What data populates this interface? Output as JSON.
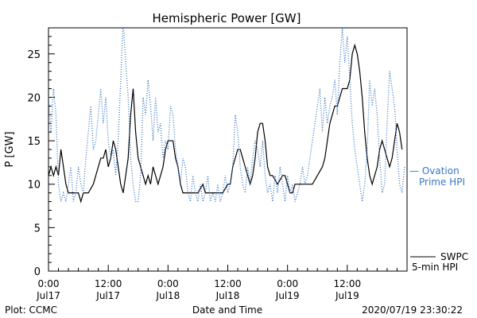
{
  "chart_data": {
    "type": "line",
    "title": "Hemispheric Power [GW]",
    "ylabel": "P [GW]",
    "xlabel": "Date and Time",
    "footer_left": "Plot: CCMC",
    "footer_right": "2020/07/19 23:30:22",
    "xlim_hours": [
      0,
      72
    ],
    "ylim": [
      0,
      28
    ],
    "y_ticks": [
      0,
      5,
      10,
      15,
      20,
      25
    ],
    "x_ticks": [
      {
        "hours": 0,
        "time": "0:00",
        "date": "Jul17"
      },
      {
        "hours": 12,
        "time": "12:00",
        "date": "Jul17"
      },
      {
        "hours": 24,
        "time": "0:00",
        "date": "Jul18"
      },
      {
        "hours": 36,
        "time": "12:00",
        "date": "Jul18"
      },
      {
        "hours": 48,
        "time": "0:00",
        "date": "Jul19"
      },
      {
        "hours": 60,
        "time": "12:00",
        "date": "Jul19"
      }
    ],
    "grid": false,
    "series": [
      {
        "name": "SWPC 5-min HPI",
        "legend_lines": [
          "SWPC",
          "5-min HPI"
        ],
        "color": "#000000",
        "style": "solid",
        "points": [
          [
            0,
            11
          ],
          [
            0.5,
            12
          ],
          [
            1,
            11
          ],
          [
            1.5,
            12
          ],
          [
            2,
            11
          ],
          [
            2.5,
            14
          ],
          [
            3,
            12
          ],
          [
            3.5,
            10
          ],
          [
            4,
            9
          ],
          [
            5,
            9
          ],
          [
            6,
            9
          ],
          [
            6.5,
            8
          ],
          [
            7,
            9
          ],
          [
            8,
            9
          ],
          [
            9,
            10
          ],
          [
            10,
            12
          ],
          [
            10.5,
            13
          ],
          [
            11,
            13
          ],
          [
            11.5,
            14
          ],
          [
            12,
            12
          ],
          [
            12.5,
            13
          ],
          [
            13,
            15
          ],
          [
            13.5,
            14
          ],
          [
            14,
            12
          ],
          [
            14.5,
            10
          ],
          [
            15,
            9
          ],
          [
            15.5,
            11
          ],
          [
            16,
            13
          ],
          [
            16.5,
            18
          ],
          [
            17,
            21
          ],
          [
            17.5,
            16
          ],
          [
            18,
            13
          ],
          [
            18.5,
            12
          ],
          [
            19,
            11
          ],
          [
            19.5,
            10
          ],
          [
            20,
            11
          ],
          [
            20.5,
            10
          ],
          [
            21,
            12
          ],
          [
            22,
            10
          ],
          [
            23,
            12
          ],
          [
            23.5,
            14
          ],
          [
            24,
            15
          ],
          [
            25,
            15
          ],
          [
            25.5,
            13
          ],
          [
            26,
            12
          ],
          [
            26.5,
            10
          ],
          [
            27,
            9
          ],
          [
            28,
            9
          ],
          [
            29,
            9
          ],
          [
            30,
            9
          ],
          [
            31,
            10
          ],
          [
            31.5,
            9
          ],
          [
            32,
            9
          ],
          [
            33,
            9
          ],
          [
            34,
            9
          ],
          [
            35,
            9
          ],
          [
            36,
            10
          ],
          [
            36.5,
            10
          ],
          [
            37,
            12
          ],
          [
            37.5,
            13
          ],
          [
            38,
            14
          ],
          [
            38.5,
            14
          ],
          [
            39,
            13
          ],
          [
            39.5,
            12
          ],
          [
            40,
            11
          ],
          [
            40.5,
            10
          ],
          [
            41,
            11
          ],
          [
            41.5,
            13
          ],
          [
            42,
            16
          ],
          [
            42.5,
            17
          ],
          [
            43,
            17
          ],
          [
            43.5,
            15
          ],
          [
            44,
            12
          ],
          [
            44.5,
            11
          ],
          [
            45,
            11
          ],
          [
            46,
            10
          ],
          [
            47,
            11
          ],
          [
            47.5,
            11
          ],
          [
            48,
            10
          ],
          [
            48.5,
            9
          ],
          [
            49,
            9
          ],
          [
            49.5,
            10
          ],
          [
            50,
            10
          ],
          [
            51,
            10
          ],
          [
            52,
            10
          ],
          [
            53,
            10
          ],
          [
            54,
            11
          ],
          [
            55,
            12
          ],
          [
            55.5,
            13
          ],
          [
            56,
            15
          ],
          [
            56.5,
            17
          ],
          [
            57,
            18
          ],
          [
            57.5,
            19
          ],
          [
            58,
            19
          ],
          [
            58.5,
            20
          ],
          [
            59,
            21
          ],
          [
            60,
            21
          ],
          [
            60.5,
            22
          ],
          [
            61,
            25
          ],
          [
            61.5,
            26
          ],
          [
            62,
            25
          ],
          [
            62.5,
            23
          ],
          [
            63,
            20
          ],
          [
            63.5,
            16
          ],
          [
            64,
            13
          ],
          [
            64.5,
            11
          ],
          [
            65,
            10
          ],
          [
            65.5,
            11
          ],
          [
            66,
            12
          ],
          [
            66.5,
            14
          ],
          [
            67,
            15
          ],
          [
            67.5,
            14
          ],
          [
            68,
            13
          ],
          [
            68.5,
            12
          ],
          [
            69,
            13
          ],
          [
            69.5,
            15
          ],
          [
            70,
            17
          ],
          [
            70.5,
            16
          ],
          [
            71,
            14
          ]
        ]
      },
      {
        "name": "Ovation Prime HPI",
        "legend_lines": [
          "— Ovation",
          "Prime HPI"
        ],
        "color": "#3a75c4",
        "style": "dotted",
        "points": [
          [
            0,
            20
          ],
          [
            0.5,
            16
          ],
          [
            1,
            21
          ],
          [
            1.5,
            18
          ],
          [
            2,
            10
          ],
          [
            2.5,
            8
          ],
          [
            3,
            9
          ],
          [
            3.5,
            8
          ],
          [
            4,
            10
          ],
          [
            4.5,
            12
          ],
          [
            5,
            8
          ],
          [
            5.5,
            9
          ],
          [
            6,
            12
          ],
          [
            6.5,
            10
          ],
          [
            7,
            9
          ],
          [
            7.5,
            13
          ],
          [
            8,
            16
          ],
          [
            8.5,
            19
          ],
          [
            9,
            14
          ],
          [
            9.5,
            15
          ],
          [
            10,
            18
          ],
          [
            10.5,
            21
          ],
          [
            11,
            17
          ],
          [
            11.5,
            20
          ],
          [
            12,
            15
          ],
          [
            12.5,
            13
          ],
          [
            13,
            14
          ],
          [
            13.5,
            11
          ],
          [
            14,
            15
          ],
          [
            14.5,
            22
          ],
          [
            15,
            29
          ],
          [
            15.5,
            24
          ],
          [
            16,
            20
          ],
          [
            16.5,
            13
          ],
          [
            17,
            10
          ],
          [
            17.5,
            8
          ],
          [
            18,
            8
          ],
          [
            18.5,
            11
          ],
          [
            19,
            20
          ],
          [
            19.5,
            18
          ],
          [
            20,
            22
          ],
          [
            20.5,
            19
          ],
          [
            21,
            15
          ],
          [
            21.5,
            20
          ],
          [
            22,
            16
          ],
          [
            22.5,
            17
          ],
          [
            23,
            13
          ],
          [
            23.5,
            15
          ],
          [
            24,
            14
          ],
          [
            24.5,
            19
          ],
          [
            25,
            18
          ],
          [
            25.5,
            14
          ],
          [
            26,
            12
          ],
          [
            26.5,
            10
          ],
          [
            27,
            13
          ],
          [
            27.5,
            12
          ],
          [
            28,
            9
          ],
          [
            28.5,
            8
          ],
          [
            29,
            11
          ],
          [
            29.5,
            9
          ],
          [
            30,
            8
          ],
          [
            30.5,
            10
          ],
          [
            31,
            8
          ],
          [
            31.5,
            9
          ],
          [
            32,
            11
          ],
          [
            32.5,
            8
          ],
          [
            33,
            9
          ],
          [
            33.5,
            8
          ],
          [
            34,
            10
          ],
          [
            34.5,
            8
          ],
          [
            35,
            9
          ],
          [
            35.5,
            11
          ],
          [
            36,
            9
          ],
          [
            36.5,
            10
          ],
          [
            37,
            12
          ],
          [
            37.5,
            18
          ],
          [
            38,
            16
          ],
          [
            38.5,
            12
          ],
          [
            39,
            10
          ],
          [
            39.5,
            9
          ],
          [
            40,
            12
          ],
          [
            40.5,
            10
          ],
          [
            41,
            13
          ],
          [
            41.5,
            15
          ],
          [
            42,
            14
          ],
          [
            42.5,
            12
          ],
          [
            43,
            15
          ],
          [
            43.5,
            11
          ],
          [
            44,
            9
          ],
          [
            44.5,
            10
          ],
          [
            45,
            8
          ],
          [
            45.5,
            11
          ],
          [
            46,
            9
          ],
          [
            46.5,
            12
          ],
          [
            47,
            10
          ],
          [
            47.5,
            8
          ],
          [
            48,
            11
          ],
          [
            48.5,
            9
          ],
          [
            49,
            10
          ],
          [
            49.5,
            8
          ],
          [
            50,
            9
          ],
          [
            50.5,
            10
          ],
          [
            51,
            12
          ],
          [
            51.5,
            10
          ],
          [
            52,
            11
          ],
          [
            52.5,
            13
          ],
          [
            53,
            15
          ],
          [
            53.5,
            17
          ],
          [
            54,
            19
          ],
          [
            54.5,
            21
          ],
          [
            55,
            16
          ],
          [
            55.5,
            20
          ],
          [
            56,
            17
          ],
          [
            56.5,
            19
          ],
          [
            57,
            20
          ],
          [
            57.5,
            22
          ],
          [
            58,
            18
          ],
          [
            58.5,
            24
          ],
          [
            59,
            28
          ],
          [
            59.5,
            24
          ],
          [
            60,
            27
          ],
          [
            60.5,
            22
          ],
          [
            61,
            17
          ],
          [
            61.5,
            14
          ],
          [
            62,
            12
          ],
          [
            62.5,
            10
          ],
          [
            63,
            8
          ],
          [
            63.5,
            10
          ],
          [
            64,
            14
          ],
          [
            64.5,
            22
          ],
          [
            65,
            19
          ],
          [
            65.5,
            21
          ],
          [
            66,
            18
          ],
          [
            66.5,
            13
          ],
          [
            67,
            9
          ],
          [
            67.5,
            10
          ],
          [
            68,
            17
          ],
          [
            68.5,
            23
          ],
          [
            69,
            21
          ],
          [
            69.5,
            19
          ],
          [
            70,
            14
          ],
          [
            70.5,
            10
          ],
          [
            71,
            9
          ],
          [
            71.5,
            12
          ]
        ]
      }
    ]
  }
}
